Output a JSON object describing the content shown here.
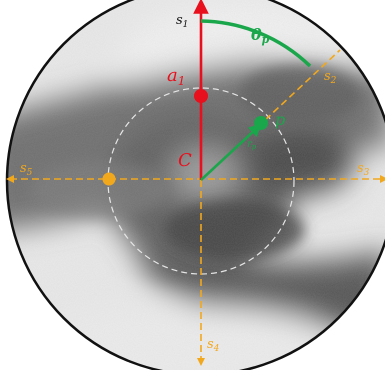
{
  "labels": {
    "s1": "s",
    "s1_sub": "1",
    "s2": "s",
    "s2_sub": "2",
    "s3": "s",
    "s3_sub": "3",
    "s4": "s",
    "s4_sub": "4",
    "s5": "s",
    "s5_sub": "5",
    "a1": "a",
    "a1_sub": "1",
    "center": "C",
    "theta": "θ",
    "theta_sub": "p",
    "p": "p",
    "r": "r",
    "r_sub": "p"
  },
  "colors": {
    "red": "#e8101c",
    "green": "#1aa64a",
    "orange": "#f2a81d",
    "dashed_circle": "#e6e6e6",
    "boundary": "#111111"
  }
}
